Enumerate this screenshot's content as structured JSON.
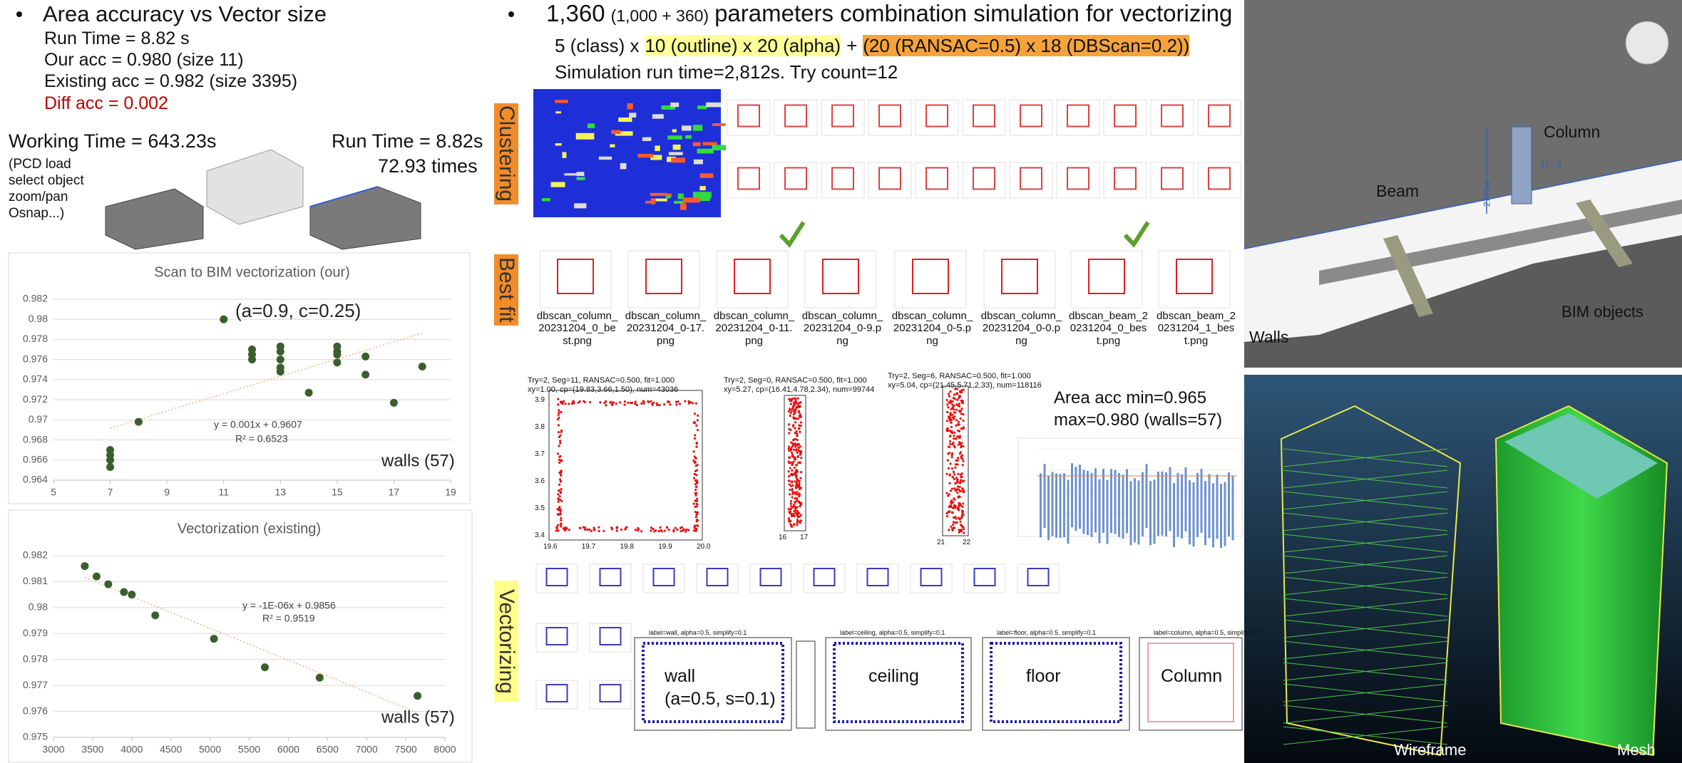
{
  "chart_data": [
    {
      "type": "scatter",
      "title": "Scan to BIM vectorization (our)",
      "x": [
        7,
        7,
        7,
        7,
        8,
        11,
        12,
        12,
        12,
        13,
        13,
        13,
        13,
        13,
        14,
        15,
        15,
        15,
        15,
        16,
        16,
        17,
        18
      ],
      "values": [
        0.9653,
        0.966,
        0.9665,
        0.967,
        0.9698,
        0.98,
        0.977,
        0.9765,
        0.976,
        0.9773,
        0.9768,
        0.976,
        0.9752,
        0.9748,
        0.9727,
        0.9773,
        0.9768,
        0.9765,
        0.9757,
        0.9763,
        0.9745,
        0.9717,
        0.9753
      ],
      "color": "#3b5f2c",
      "trend_color": "#f4b183",
      "xlim": [
        5,
        19
      ],
      "xticks": [
        5,
        7,
        9,
        11,
        13,
        15,
        17,
        19
      ],
      "ylim": [
        0.964,
        0.982
      ],
      "yticks": [
        0.964,
        0.966,
        0.968,
        0.97,
        0.972,
        0.974,
        0.976,
        0.978,
        0.98,
        0.982
      ],
      "grid": true,
      "annotations": [
        "(a=0.9, c=0.25)",
        "y = 0.001x + 0.9607",
        "R² = 0.6523",
        "walls (57)"
      ]
    },
    {
      "type": "scatter",
      "title": "Vectorization (existing)",
      "x": [
        3400,
        3550,
        3700,
        3900,
        4000,
        4300,
        5050,
        5700,
        6400,
        7650
      ],
      "values": [
        0.9816,
        0.9812,
        0.9809,
        0.9806,
        0.9805,
        0.9797,
        0.9788,
        0.9777,
        0.9773,
        0.9766
      ],
      "color": "#3b5f2c",
      "trend_color": "#f4b183",
      "xlim": [
        3000,
        8000
      ],
      "xticks": [
        3000,
        3500,
        4000,
        4500,
        5000,
        5500,
        6000,
        6500,
        7000,
        7500,
        8000
      ],
      "ylim": [
        0.975,
        0.982
      ],
      "yticks": [
        0.975,
        0.976,
        0.977,
        0.978,
        0.979,
        0.98,
        0.981,
        0.982
      ],
      "grid": true,
      "annotations": [
        "y = -1E-06x + 0.9856",
        "R² = 0.9519",
        "walls (57)"
      ]
    }
  ],
  "slide": {
    "left": {
      "title": "Area accuracy vs Vector size",
      "lines": [
        "Run Time = 8.82 s",
        "Our acc = 0.980 (size 11)",
        "Existing acc = 0.982 (size 3395)",
        "Diff acc = 0.002"
      ],
      "working_time": "Working Time = 643.23s",
      "notes": [
        "(PCD load",
        "select object",
        "zoom/pan",
        "Osnap...)"
      ],
      "run_time": "Run Time = 8.82s",
      "speedup": "72.93 times"
    },
    "middle": {
      "title": "1,360",
      "title_small": "(1,000 + 360)",
      "title_rest": "parameters combination simulation for vectorizing",
      "formula": [
        "5 (class) x",
        "10 (outline) x 20 (alpha)",
        "+",
        "(20 (RANSAC=0.5) x 18 (DBScan=0.2))"
      ],
      "simulation": "Simulation run time=2,812s. Try count=12",
      "sections": [
        "Clustering",
        "Best fit",
        "Vectorizing"
      ],
      "best_fit": [
        "dbscan_column_20231204_0_best.png",
        "dbscan_column_20231204_0-17.png",
        "dbscan_column_20231204_0-11.png",
        "dbscan_column_20231204_0-9.png",
        "dbscan_column_20231204_0-5.png",
        "dbscan_column_20231204_0-0.png",
        "dbscan_beam_20231204_0_best.png",
        "dbscan_beam_20231204_1_best.png"
      ],
      "fit_plots": [
        {
          "title": [
            "Try=2, Seg=11, RANSAC=0.500, fit=1.000",
            "xy=1.00, cp=(19.83,3.66,1.50), num=43036"
          ],
          "xticks": [
            "19.6",
            "19.7",
            "19.8",
            "19.9",
            "20.0"
          ],
          "yticks": [
            "3.9",
            "3.8",
            "3.7",
            "3.6",
            "3.5",
            "3.4"
          ]
        },
        {
          "title": [
            "Try=2, Seg=0, RANSAC=0.500, fit=1.000",
            "xy=5.27, cp=(16.41,4.78,2.34), num=99744"
          ],
          "xticks": [
            "16",
            "17"
          ]
        },
        {
          "title": [
            "Try=2, Seg=6, RANSAC=0.500, fit=1.000",
            "xy=5.04, cp=(21.45,5.71,2.33), num=118116"
          ],
          "xticks": [
            "21",
            "22"
          ]
        }
      ],
      "area_acc": [
        "Area acc min=0.965",
        "max=0.980 (walls=57)"
      ],
      "vector_plots": [
        {
          "title": "label=wall, alpha=0.5, simplify=0.1",
          "label": [
            "wall",
            "(a=0.5, s=0.1)"
          ]
        },
        {
          "title": "label=ceiling, alpha=0.5, simplify=0.1",
          "label": [
            "ceiling"
          ]
        },
        {
          "title": "label=floor, alpha=0.5, simplify=0.1",
          "label": [
            "floor"
          ]
        },
        {
          "title": "label=column, alpha=0.5, simplify=0.1",
          "label": [
            "Column"
          ]
        }
      ]
    },
    "right": {
      "labels": [
        "Column",
        "Beam",
        "Walls",
        "BIM objects"
      ],
      "dimensions": [
        "2775.4",
        "177.8"
      ],
      "views": [
        "Wireframe",
        "Mesh"
      ]
    }
  }
}
